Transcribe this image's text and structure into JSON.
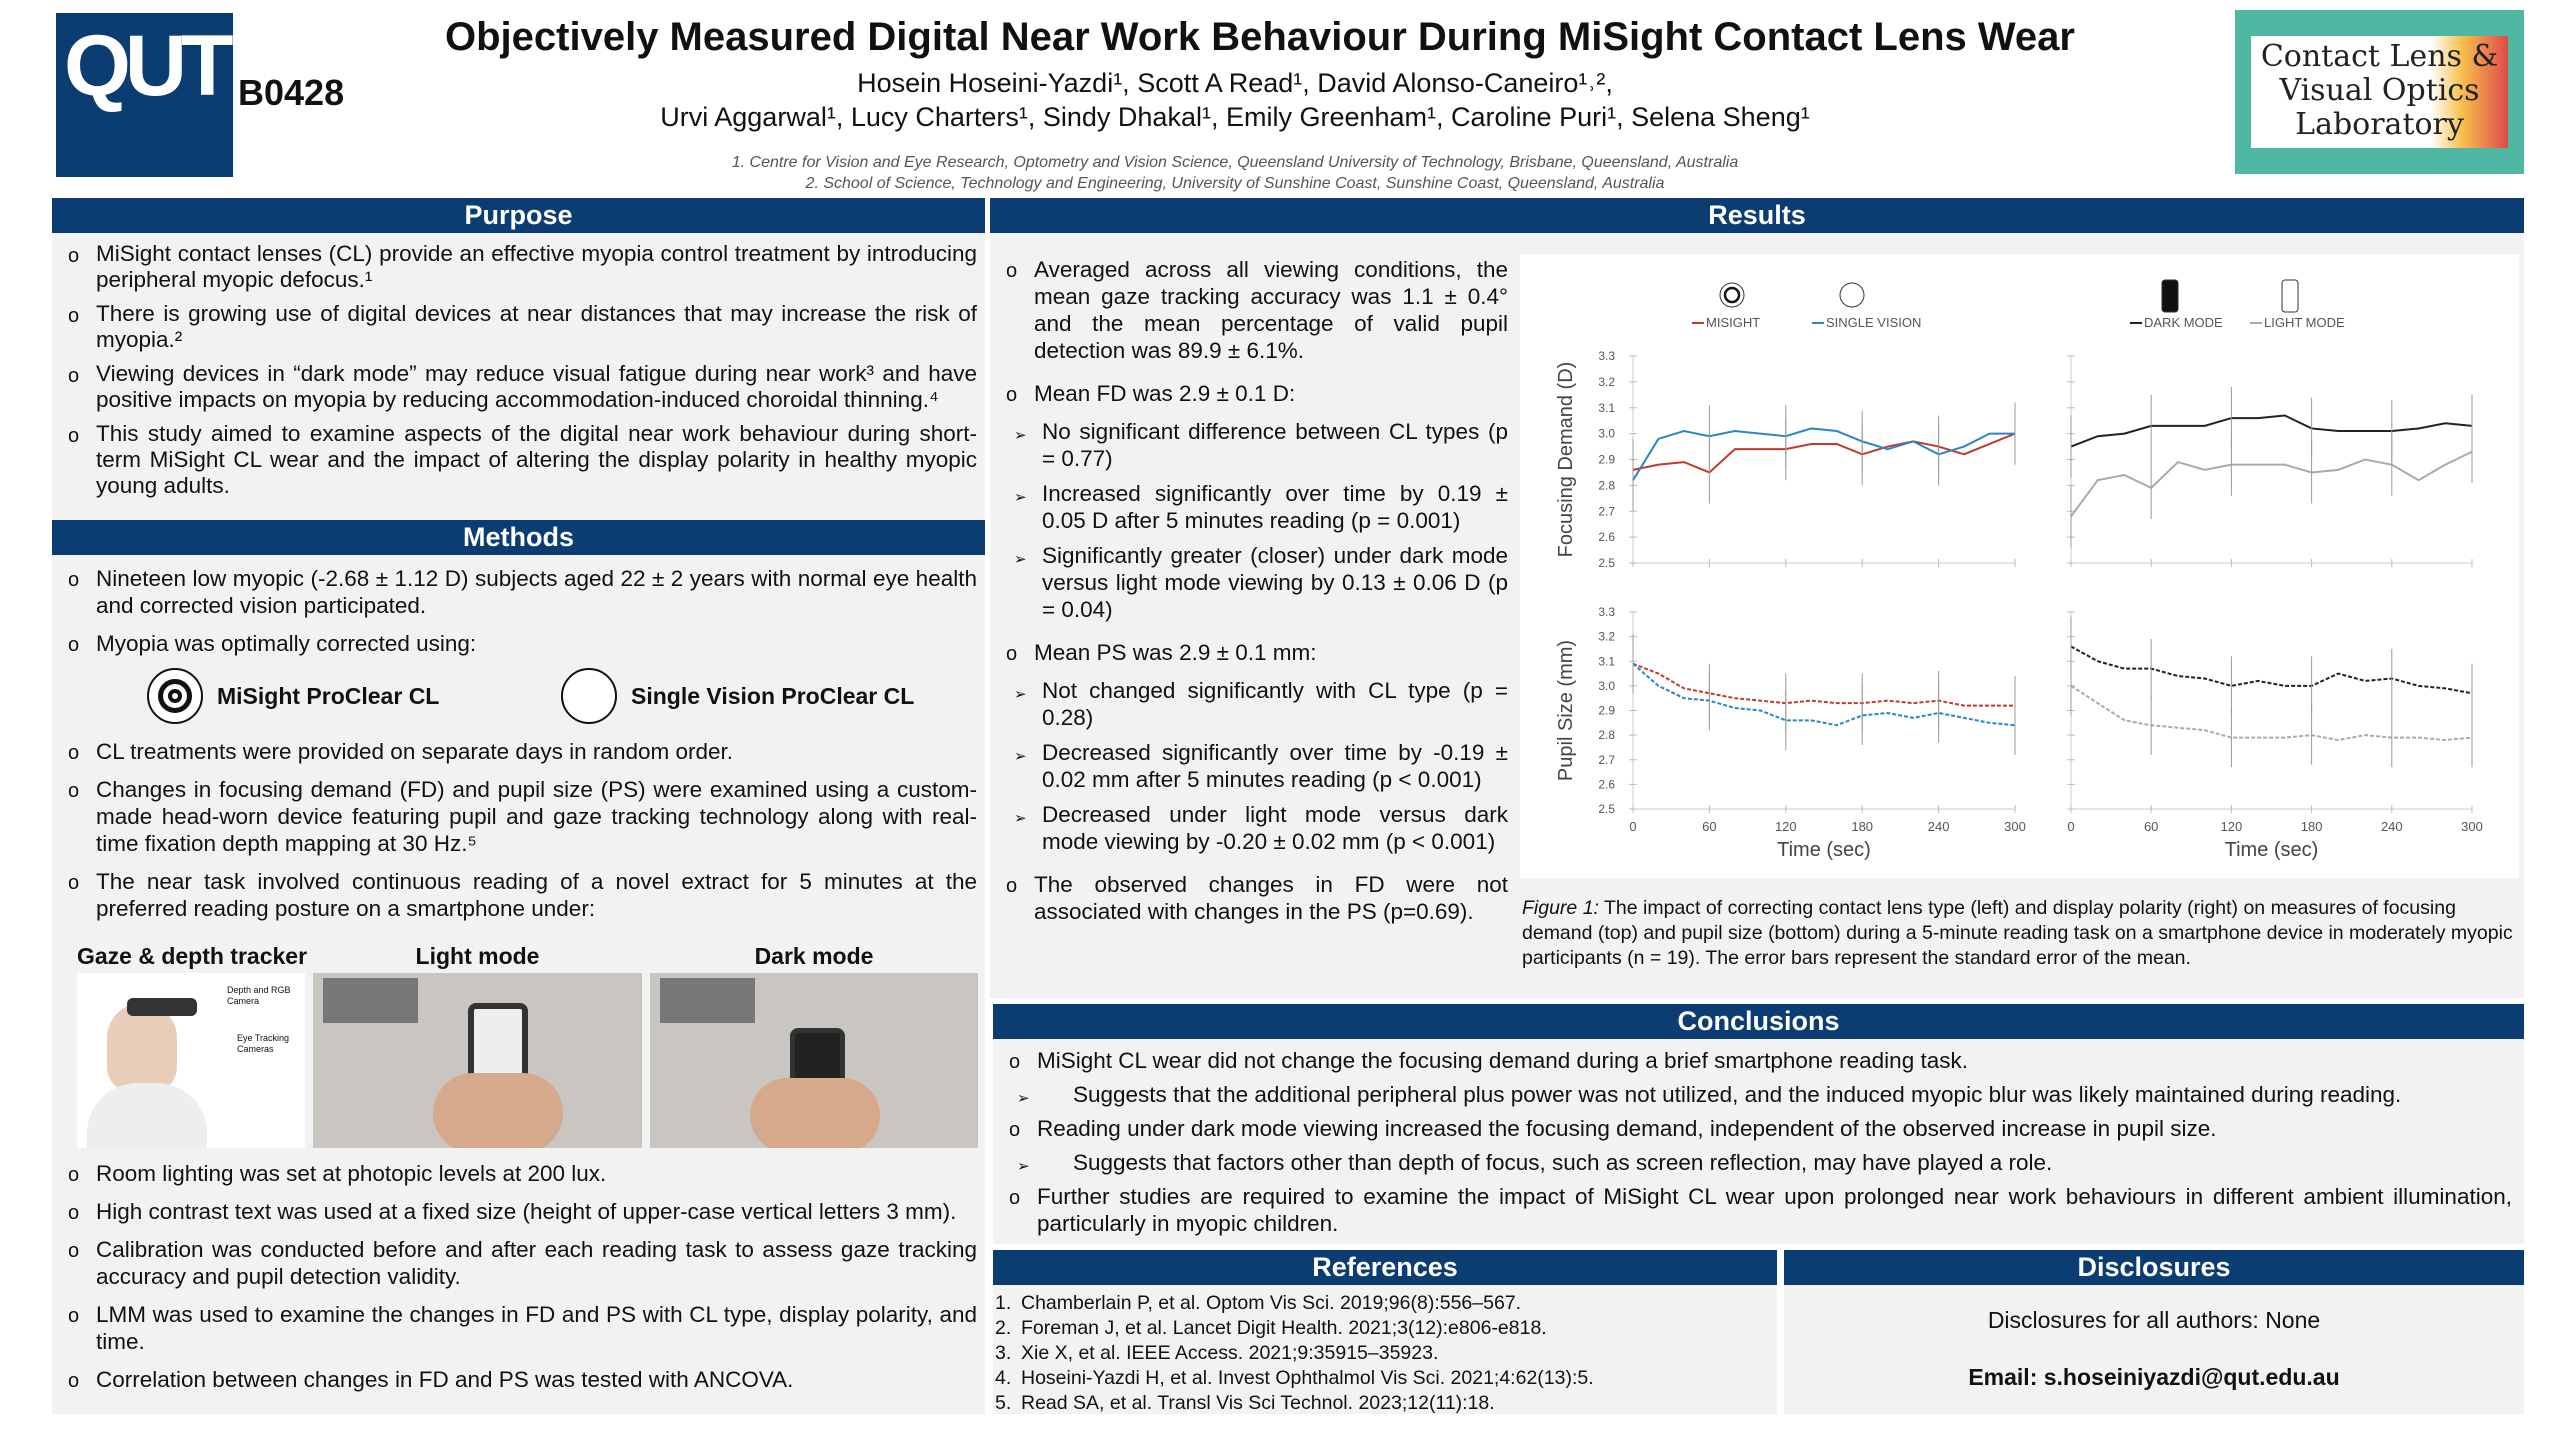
{
  "header": {
    "logo_left": "QUT",
    "poster_code": "B0428",
    "title": "Objectively Measured Digital Near Work Behaviour During MiSight Contact Lens Wear",
    "authors_line1": "Hosein Hoseini-Yazdi¹, Scott A Read¹, David Alonso-Caneiro¹˒²,",
    "authors_line2": "Urvi Aggarwal¹, Lucy Charters¹, Sindy Dhakal¹, Emily Greenham¹, Caroline Puri¹, Selena Sheng¹",
    "affiliation1": "1.   Centre for Vision and Eye Research, Optometry and Vision Science, Queensland University of Technology, Brisbane, Queensland, Australia",
    "affiliation2": "2.  School of Science, Technology and Engineering, University of Sunshine Coast, Sunshine Coast, Queensland, Australia",
    "logo_right": "Contact Lens & Visual Optics Laboratory"
  },
  "purpose": {
    "heading": "Purpose",
    "items": [
      "MiSight contact lenses (CL) provide an effective myopia control treatment by introducing peripheral myopic defocus.¹",
      "There is growing use of digital devices at near distances that may increase the risk of myopia.²",
      "Viewing devices in “dark mode” may reduce visual fatigue during near work³ and have positive impacts on myopia by reducing accommodation-induced choroidal thinning.⁴",
      "This study aimed to examine aspects of the digital near work behaviour during short-term MiSight CL wear and the impact of altering the display polarity in healthy myopic young adults."
    ]
  },
  "methods": {
    "heading": "Methods",
    "items": [
      "Nineteen low myopic (-2.68 ± 1.12 D) subjects aged 22 ± 2 years with normal eye health and corrected vision participated.",
      "Myopia was optimally corrected using:",
      "CL treatments were provided on separate days in random order.",
      "Changes in focusing demand (FD) and pupil size (PS) were examined using a custom-made head-worn device featuring pupil and gaze tracking technology along with real-time fixation depth mapping at 30 Hz.⁵",
      "The near task involved continuous reading of a novel extract for 5 minutes at the preferred reading posture on a smartphone under:",
      "Room lighting was set at photopic levels at 200 lux.",
      "High contrast text was used at a fixed size (height of upper-case vertical letters 3 mm).",
      "Calibration was conducted before and after each reading task to assess gaze tracking accuracy and pupil detection validity.",
      "LMM was used to examine the changes in FD and PS with CL type, display polarity, and time.",
      "Correlation between changes in FD and PS was tested with ANCOVA."
    ],
    "lens1": "MiSight ProClear CL",
    "lens2": "Single Vision ProClear CL",
    "photo_labels": [
      "Gaze & depth tracker",
      "Light mode",
      "Dark mode"
    ],
    "tracker_labels": [
      "Depth and RGB Camera",
      "Eye Tracking Cameras"
    ]
  },
  "results": {
    "heading": "Results",
    "items": [
      "Averaged across all viewing conditions, the mean gaze tracking accuracy was 1.1 ± 0.4° and the mean percentage of valid pupil detection was 89.9 ± 6.1%.",
      "Mean FD was 2.9 ± 0.1 D:",
      "No significant difference between CL types (p = 0.77)",
      "Increased significantly over time by 0.19 ± 0.05 D after 5 minutes reading (p = 0.001)",
      "Significantly greater (closer) under dark mode versus light mode viewing by 0.13 ± 0.06 D (p = 0.04)",
      "Mean PS was 2.9 ± 0.1 mm:",
      "Not changed significantly with CL type (p = 0.28)",
      "Decreased significantly over time by -0.19 ± 0.02 mm after 5 minutes reading (p < 0.001)",
      "Decreased under light mode versus dark mode viewing by -0.20 ± 0.02 mm (p < 0.001)",
      "The observed changes in FD were not associated with changes in the PS (p=0.69)."
    ],
    "caption_label": "Figure 1:",
    "caption": " The impact of correcting contact lens type (left) and display polarity (right) on measures of focusing demand (top) and pupil size (bottom) during a 5-minute reading task on a smartphone device in moderately myopic participants (n = 19). The error bars represent the standard error of the mean."
  },
  "chart_data": [
    {
      "type": "line",
      "position": "top-left",
      "ylabel": "Focusing Demand (D)",
      "xlabel": "",
      "ylim": [
        2.5,
        3.3
      ],
      "xlim": [
        0,
        300
      ],
      "x": [
        0,
        20,
        40,
        60,
        80,
        100,
        120,
        140,
        160,
        180,
        200,
        220,
        240,
        260,
        280,
        300
      ],
      "yticks": [
        "2.5",
        "2.6",
        "2.7",
        "2.8",
        "2.9",
        "3.0",
        "3.1",
        "3.2",
        "3.3"
      ],
      "error_bar_x": [
        0,
        60,
        120,
        180,
        240,
        300
      ],
      "legend_placement": "top",
      "series": [
        {
          "name": "MISIGHT",
          "color": "#c0392b",
          "style": "solid",
          "values": [
            2.86,
            2.88,
            2.89,
            2.85,
            2.94,
            2.94,
            2.94,
            2.96,
            2.96,
            2.92,
            2.95,
            2.97,
            2.95,
            2.92,
            2.96,
            3.0
          ]
        },
        {
          "name": "SINGLE VISION",
          "color": "#2e86c1",
          "style": "solid",
          "values": [
            2.82,
            2.98,
            3.01,
            2.99,
            3.01,
            3.0,
            2.99,
            3.02,
            3.01,
            2.97,
            2.94,
            2.97,
            2.92,
            2.95,
            3.0,
            3.0
          ]
        }
      ]
    },
    {
      "type": "line",
      "position": "top-right",
      "ylim": [
        2.5,
        3.3
      ],
      "xlim": [
        0,
        300
      ],
      "x": [
        0,
        20,
        40,
        60,
        80,
        100,
        120,
        140,
        160,
        180,
        200,
        220,
        240,
        260,
        280,
        300
      ],
      "error_bar_x": [
        0,
        60,
        120,
        180,
        240,
        300
      ],
      "legend_placement": "top",
      "series": [
        {
          "name": "DARK MODE",
          "color": "#222222",
          "style": "solid",
          "values": [
            2.95,
            2.99,
            3.0,
            3.03,
            3.03,
            3.03,
            3.06,
            3.06,
            3.07,
            3.02,
            3.01,
            3.01,
            3.01,
            3.02,
            3.04,
            3.03
          ]
        },
        {
          "name": "LIGHT MODE",
          "color": "#aaaaaa",
          "style": "solid",
          "values": [
            2.68,
            2.82,
            2.84,
            2.79,
            2.89,
            2.86,
            2.88,
            2.88,
            2.88,
            2.85,
            2.86,
            2.9,
            2.88,
            2.82,
            2.88,
            2.93
          ]
        }
      ]
    },
    {
      "type": "line",
      "position": "bottom-left",
      "ylabel": "Pupil Size (mm)",
      "xlabel": "Time (sec)",
      "ylim": [
        2.5,
        3.3
      ],
      "xlim": [
        0,
        300
      ],
      "x": [
        0,
        20,
        40,
        60,
        80,
        100,
        120,
        140,
        160,
        180,
        200,
        220,
        240,
        260,
        280,
        300
      ],
      "yticks": [
        "2.5",
        "2.6",
        "2.7",
        "2.8",
        "2.9",
        "3.0",
        "3.1",
        "3.2",
        "3.3"
      ],
      "xticks": [
        "0",
        "60",
        "120",
        "180",
        "240",
        "300"
      ],
      "error_bar_x": [
        0,
        60,
        120,
        180,
        240,
        300
      ],
      "series": [
        {
          "name": "MISIGHT",
          "color": "#c0392b",
          "style": "dashed",
          "values": [
            3.09,
            3.05,
            2.99,
            2.97,
            2.95,
            2.94,
            2.93,
            2.94,
            2.93,
            2.93,
            2.94,
            2.93,
            2.94,
            2.92,
            2.92,
            2.92
          ]
        },
        {
          "name": "SINGLE VISION",
          "color": "#2e86c1",
          "style": "dashed",
          "values": [
            3.09,
            3.0,
            2.95,
            2.94,
            2.91,
            2.9,
            2.86,
            2.86,
            2.84,
            2.88,
            2.89,
            2.87,
            2.89,
            2.87,
            2.85,
            2.84
          ]
        }
      ]
    },
    {
      "type": "line",
      "position": "bottom-right",
      "xlabel": "Time (sec)",
      "ylim": [
        2.5,
        3.3
      ],
      "xlim": [
        0,
        300
      ],
      "x": [
        0,
        20,
        40,
        60,
        80,
        100,
        120,
        140,
        160,
        180,
        200,
        220,
        240,
        260,
        280,
        300
      ],
      "xticks": [
        "0",
        "60",
        "120",
        "180",
        "240",
        "300"
      ],
      "error_bar_x": [
        0,
        60,
        120,
        180,
        240,
        300
      ],
      "series": [
        {
          "name": "DARK MODE",
          "color": "#222222",
          "style": "dashed",
          "values": [
            3.16,
            3.1,
            3.07,
            3.07,
            3.04,
            3.03,
            3.0,
            3.02,
            3.0,
            3.0,
            3.05,
            3.02,
            3.03,
            3.0,
            2.99,
            2.97
          ]
        },
        {
          "name": "LIGHT MODE",
          "color": "#aaaaaa",
          "style": "dashed",
          "values": [
            3.0,
            2.93,
            2.86,
            2.84,
            2.83,
            2.82,
            2.79,
            2.79,
            2.79,
            2.8,
            2.78,
            2.8,
            2.79,
            2.79,
            2.78,
            2.79
          ]
        }
      ]
    }
  ],
  "conclusions": {
    "heading": "Conclusions",
    "items": [
      "MiSight CL wear did not change the focusing demand during a brief smartphone reading task.",
      "Suggests that the additional peripheral plus power was not utilized, and the induced myopic blur was likely maintained during reading.",
      "Reading under dark mode viewing increased the focusing demand, independent of the observed increase in pupil size.",
      "Suggests that factors other than depth of focus, such as screen reflection, may have played a role.",
      "Further studies are required to examine the impact of MiSight CL wear upon prolonged near work behaviours in different ambient illumination, particularly in myopic children."
    ]
  },
  "references": {
    "heading": "References",
    "items": [
      "Chamberlain P, et al. Optom Vis Sci. 2019;96(8):556–567.",
      "Foreman J, et al. Lancet Digit Health. 2021;3(12):e806-e818.",
      "Xie X, et al. IEEE Access. 2021;9:35915–35923.",
      "Hoseini-Yazdi H, et al. Invest Ophthalmol Vis Sci. 2021;4:62(13):5.",
      "Read SA, et al. Transl Vis Sci Technol. 2023;12(11):18."
    ]
  },
  "disclosures": {
    "heading": "Disclosures",
    "text": "Disclosures for all authors: None",
    "email": "Email: s.hoseiniyazdi@qut.edu.au"
  },
  "colors": {
    "header_blue": "#0b3d73",
    "panel_gray": "#f2f2f2",
    "logo_teal": "#4fb8a4"
  }
}
